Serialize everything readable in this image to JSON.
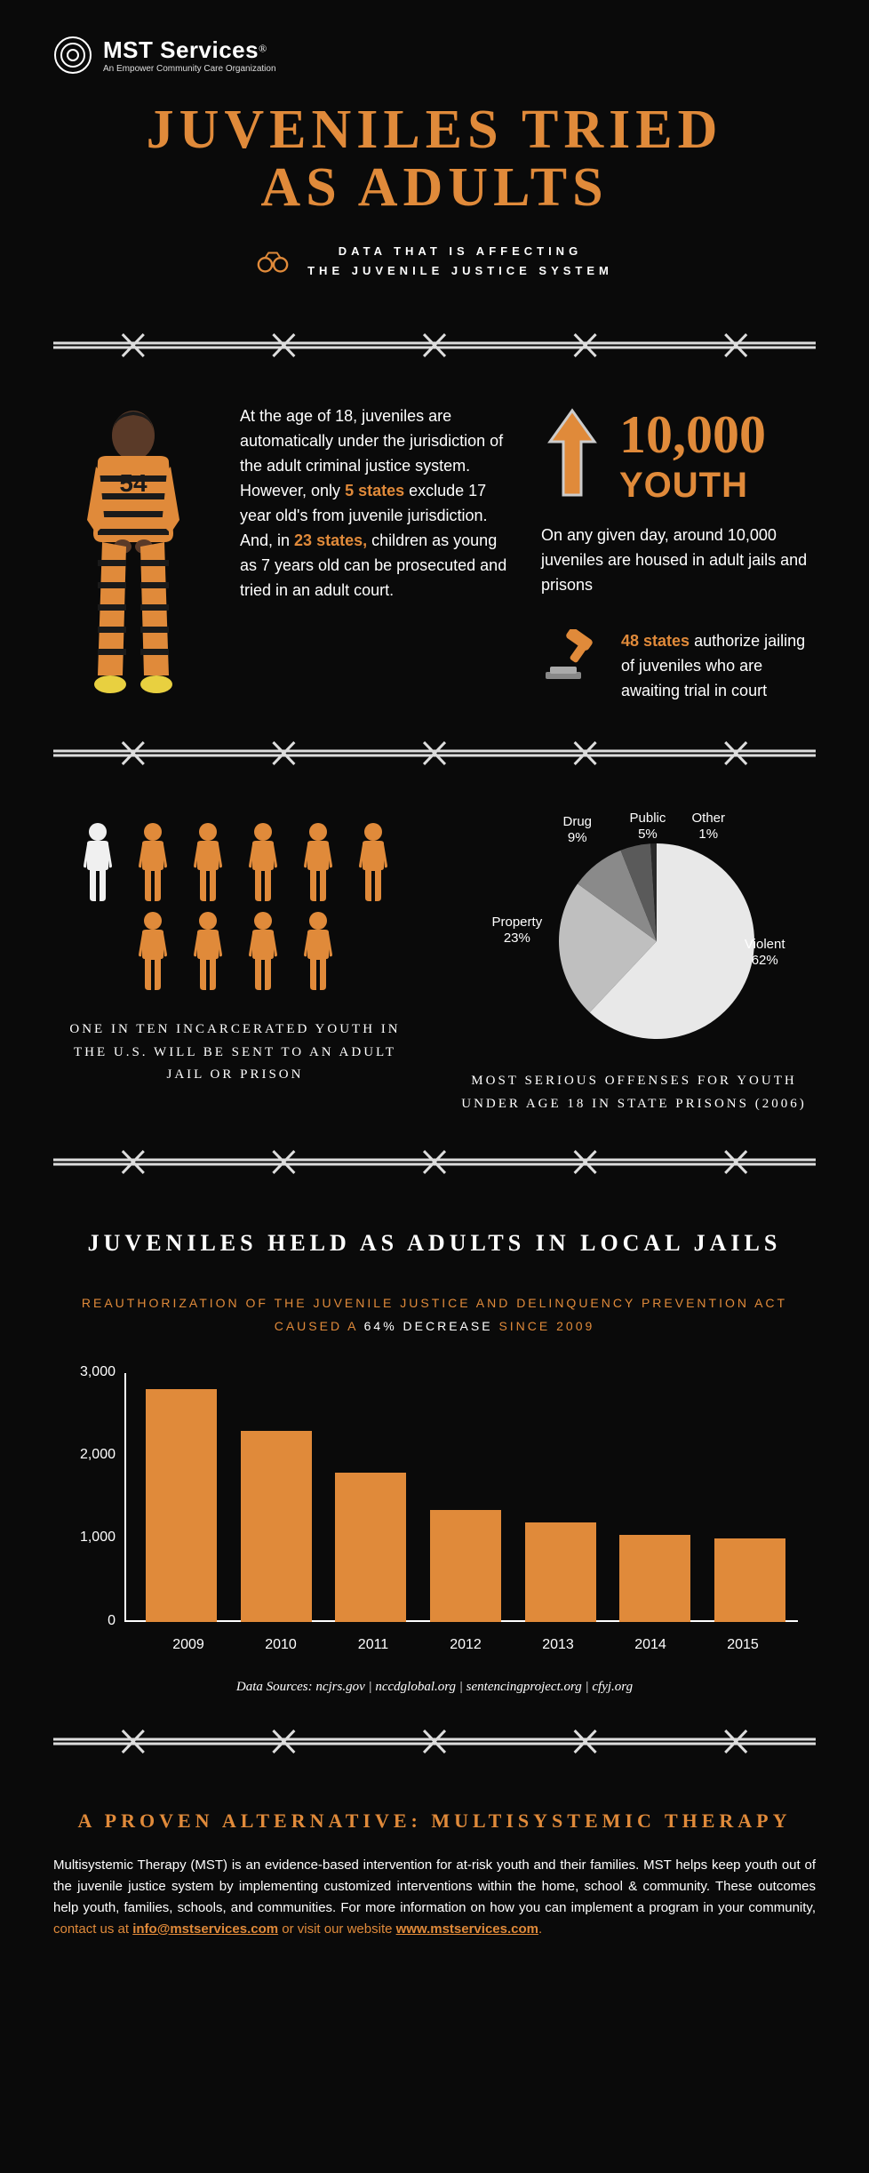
{
  "logo": {
    "name": "MST Services",
    "reg": "®",
    "tag": "An Empower Community Care Organization"
  },
  "title": "JUVENILES TRIED\nAS ADULTS",
  "subtitle": "DATA THAT IS AFFECTING\nTHE JUVENILE JUSTICE SYSTEM",
  "intro": {
    "p1a": "At the age of 18, juveniles are automatically under the jurisdiction of the adult criminal justice system. However, only ",
    "p1b": "5 states",
    "p1c": " exclude 17 year old's from juvenile jurisdiction. And, in ",
    "p1d": "23 states,",
    "p1e": " children as young as 7 years old can be prosecuted and tried in an adult court."
  },
  "stat_big": {
    "num": "10,000",
    "label": "YOUTH",
    "caption": "On any given day, around 10,000 juveniles are housed in adult jails and prisons"
  },
  "gavel": {
    "hl": "48 states",
    "rest": " authorize jailing of juveniles who are awaiting trial in court"
  },
  "people": {
    "caption": "ONE IN TEN INCARCERATED YOUTH IN THE U.S. WILL BE SENT TO AN ADULT JAIL OR PRISON"
  },
  "pie": {
    "caption": "MOST SERIOUS OFFENSES FOR YOUTH UNDER AGE 18 IN STATE PRISONS (2006)",
    "slices": [
      {
        "label": "Violent",
        "pct": "62%",
        "value": 62,
        "color": "#e8e8e8"
      },
      {
        "label": "Property",
        "pct": "23%",
        "value": 23,
        "color": "#bfbfbf"
      },
      {
        "label": "Drug",
        "pct": "9%",
        "value": 9,
        "color": "#8a8a8a"
      },
      {
        "label": "Public",
        "pct": "5%",
        "value": 5,
        "color": "#5a5a5a"
      },
      {
        "label": "Other",
        "pct": "1%",
        "value": 1,
        "color": "#2a2a2a"
      }
    ]
  },
  "section2": "JUVENILES HELD AS ADULTS IN LOCAL JAILS",
  "chart_sub": {
    "a": "REAUTHORIZATION OF THE JUVENILE JUSTICE AND DELINQUENCY PREVENTION ACT CAUSED A ",
    "b": "64% DECREASE",
    "c": " SINCE 2009"
  },
  "bar": {
    "ymax": 3000,
    "yticks": [
      "0",
      "1,000",
      "2,000",
      "3,000"
    ],
    "years": [
      "2009",
      "2010",
      "2011",
      "2012",
      "2013",
      "2014",
      "2015"
    ],
    "values": [
      2800,
      2300,
      1800,
      1350,
      1200,
      1050,
      1000
    ],
    "color": "#e08a3a"
  },
  "sources": "Data Sources: ncjrs.gov | nccdglobal.org | sentencingproject.org | cfyj.org",
  "alt": {
    "head": "A PROVEN ALTERNATIVE: MULTISYSTEMIC THERAPY",
    "body_a": "Multisystemic Therapy (MST) is an evidence-based intervention for at-risk youth and their families. MST helps keep youth out of the juvenile justice system by implementing customized interventions within the home, school & community. These outcomes help youth, families, schools, and communities. For more information on how you can implement a program in your community, ",
    "body_b": "contact us at ",
    "body_c": "info@mstservices.com",
    "body_d": " or visit our website ",
    "body_e": "www.mstservices.com"
  },
  "colors": {
    "accent": "#e08a3a",
    "bg": "#0a0a0a"
  }
}
